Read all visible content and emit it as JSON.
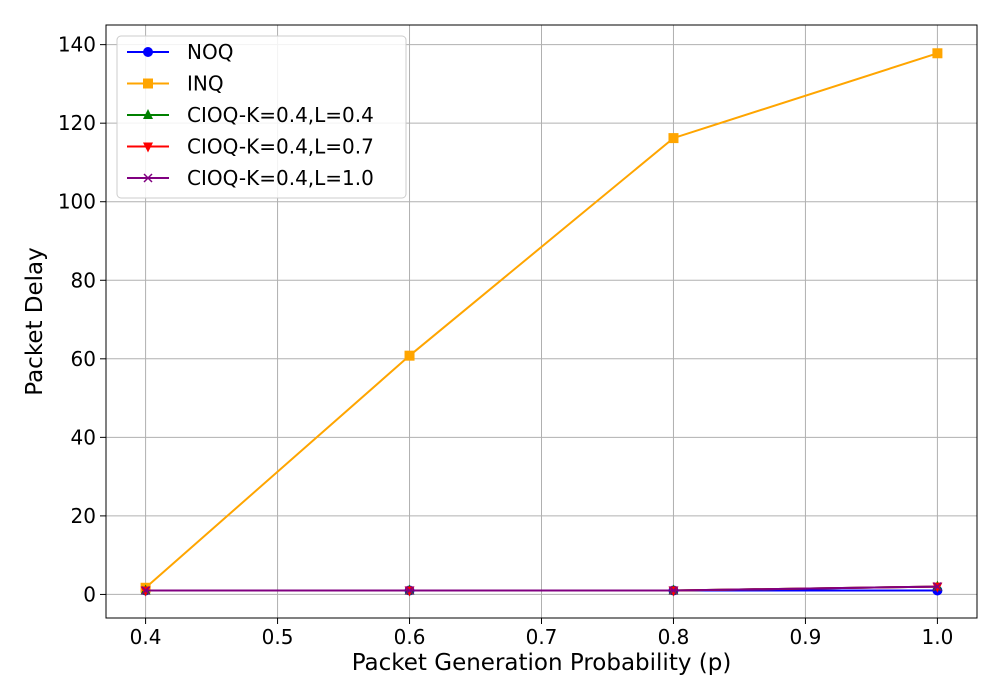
{
  "chart_data": {
    "type": "line",
    "title": "",
    "xlabel": "Packet Generation Probability (p)",
    "ylabel": "Packet Delay",
    "x": [
      0.4,
      0.6,
      0.8,
      1.0
    ],
    "xlim": [
      0.37,
      1.03
    ],
    "ylim": [
      -6,
      145
    ],
    "xticks": [
      "0.4",
      "0.5",
      "0.6",
      "0.7",
      "0.8",
      "0.9",
      "1.0"
    ],
    "yticks": [
      "0",
      "20",
      "40",
      "60",
      "80",
      "100",
      "120",
      "140"
    ],
    "grid": true,
    "legend_position": "top-left",
    "series": [
      {
        "name": "NOQ",
        "color": "#0000ff",
        "marker": "circle",
        "values": [
          1.0,
          1.0,
          1.0,
          1.0
        ]
      },
      {
        "name": "INQ",
        "color": "#ffa500",
        "marker": "square",
        "values": [
          1.7,
          60.8,
          116.2,
          137.8
        ]
      },
      {
        "name": "CIOQ-K=0.4,L=0.4",
        "color": "#008000",
        "marker": "triangle-up",
        "values": [
          1.0,
          1.0,
          1.0,
          2.0
        ]
      },
      {
        "name": "CIOQ-K=0.4,L=0.7",
        "color": "#ff0000",
        "marker": "triangle-down",
        "values": [
          1.0,
          1.0,
          1.0,
          2.0
        ]
      },
      {
        "name": "CIOQ-K=0.4,L=1.0",
        "color": "#800080",
        "marker": "x",
        "values": [
          1.0,
          1.0,
          1.0,
          2.0
        ]
      }
    ]
  }
}
